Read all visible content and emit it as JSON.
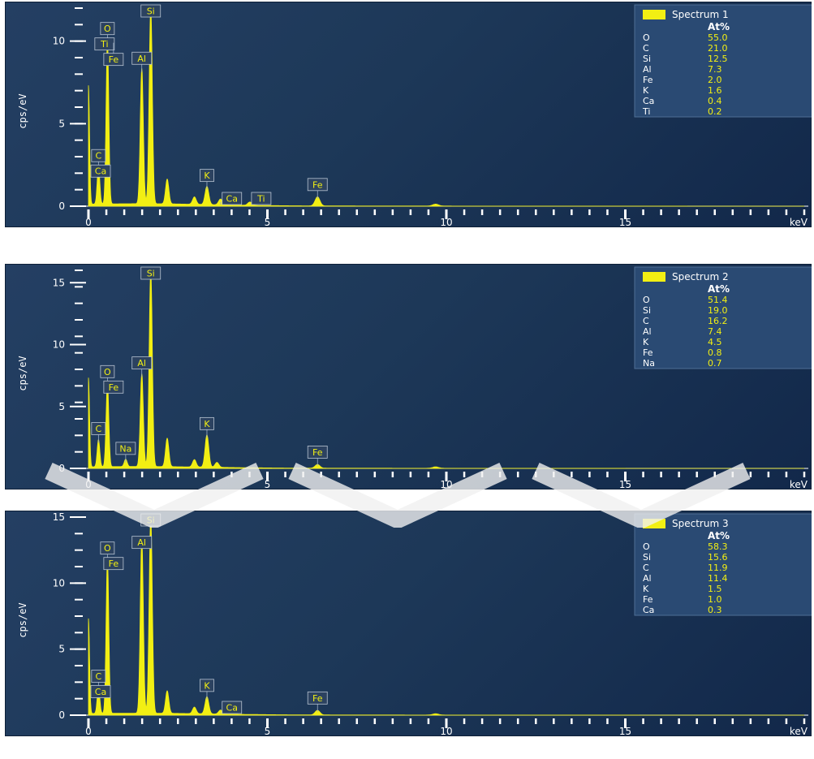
{
  "colors": {
    "spectrum": "#f2ef13",
    "panel_text": "#ffffff",
    "value_text": "#f2ef13"
  },
  "chart_data": [
    {
      "type": "line",
      "ylabel": "cps/eV",
      "xlabel": "keV",
      "xlim": [
        0,
        20
      ],
      "ylim": [
        0,
        12
      ],
      "x_ticks": [
        0,
        5,
        10,
        15
      ],
      "y_ticks": [
        0,
        5,
        10
      ],
      "legend": {
        "label": "Spectrum 1",
        "header": "At%",
        "position": "top-right",
        "rows": [
          [
            "O",
            "55.0"
          ],
          [
            "C",
            "21.0"
          ],
          [
            "Si",
            "12.5"
          ],
          [
            "Al",
            "7.3"
          ],
          [
            "Fe",
            "2.0"
          ],
          [
            "K",
            "1.6"
          ],
          [
            "Ca",
            "0.4"
          ],
          [
            "Ti",
            "0.2"
          ]
        ]
      },
      "peaks": [
        {
          "x": 0.0,
          "y": 7.2
        },
        {
          "x": 0.28,
          "y": 2.3
        },
        {
          "x": 0.53,
          "y": 10.0
        },
        {
          "x": 1.49,
          "y": 8.2
        },
        {
          "x": 1.74,
          "y": 12.0
        },
        {
          "x": 2.2,
          "y": 1.5
        },
        {
          "x": 2.96,
          "y": 0.45
        },
        {
          "x": 3.31,
          "y": 1.1
        },
        {
          "x": 3.69,
          "y": 0.35
        },
        {
          "x": 4.51,
          "y": 0.2
        },
        {
          "x": 6.4,
          "y": 0.55
        },
        {
          "x": 9.7,
          "y": 0.12
        }
      ],
      "peak_labels": [
        {
          "label": "Si",
          "x": 1.74
        },
        {
          "label": "O",
          "x": 0.53
        },
        {
          "label": "Al",
          "x": 1.49
        },
        {
          "label": "C",
          "x": 0.28
        },
        {
          "label": "Ti",
          "x": 0.45
        },
        {
          "label": "Fe",
          "x": 0.7
        },
        {
          "label": "Ca",
          "x": 0.34
        },
        {
          "label": "K",
          "x": 3.31
        },
        {
          "label": "Ca",
          "x": 3.69
        },
        {
          "label": "Ti",
          "x": 4.51
        },
        {
          "label": "Fe",
          "x": 6.4
        }
      ]
    },
    {
      "type": "line",
      "ylabel": "cps/eV",
      "xlabel": "keV",
      "xlim": [
        0,
        20
      ],
      "ylim": [
        0,
        16
      ],
      "x_ticks": [
        0,
        5,
        10,
        15
      ],
      "y_ticks": [
        0,
        5,
        10,
        15
      ],
      "legend": {
        "label": "Spectrum 2",
        "header": "At%",
        "position": "top-right",
        "rows": [
          [
            "O",
            "51.4"
          ],
          [
            "Si",
            "19.0"
          ],
          [
            "C",
            "16.2"
          ],
          [
            "Al",
            "7.4"
          ],
          [
            "K",
            "4.5"
          ],
          [
            "Fe",
            "0.8"
          ],
          [
            "Na",
            "0.7"
          ]
        ]
      },
      "peaks": [
        {
          "x": 0.0,
          "y": 7.2
        },
        {
          "x": 0.28,
          "y": 2.2
        },
        {
          "x": 0.53,
          "y": 6.8
        },
        {
          "x": 1.04,
          "y": 0.6
        },
        {
          "x": 1.49,
          "y": 7.5
        },
        {
          "x": 1.74,
          "y": 16.0
        },
        {
          "x": 2.2,
          "y": 2.3
        },
        {
          "x": 2.96,
          "y": 0.6
        },
        {
          "x": 3.31,
          "y": 2.6
        },
        {
          "x": 3.59,
          "y": 0.4
        },
        {
          "x": 6.4,
          "y": 0.3
        },
        {
          "x": 9.7,
          "y": 0.12
        }
      ],
      "peak_labels": [
        {
          "label": "Si",
          "x": 1.74
        },
        {
          "label": "O",
          "x": 0.53
        },
        {
          "label": "Al",
          "x": 1.49
        },
        {
          "label": "C",
          "x": 0.28
        },
        {
          "label": "Na",
          "x": 1.04
        },
        {
          "label": "Fe",
          "x": 0.7
        },
        {
          "label": "K",
          "x": 3.31
        },
        {
          "label": "Fe",
          "x": 6.4
        }
      ]
    },
    {
      "type": "line",
      "ylabel": "cps/eV",
      "xlabel": "keV",
      "xlim": [
        0,
        20
      ],
      "ylim": [
        0,
        15
      ],
      "x_ticks": [
        0,
        5,
        10,
        15
      ],
      "y_ticks": [
        0,
        5,
        10,
        15
      ],
      "legend": {
        "label": "Spectrum 3",
        "header": "At%",
        "position": "top-right",
        "rows": [
          [
            "O",
            "58.3"
          ],
          [
            "Si",
            "15.6"
          ],
          [
            "C",
            "11.9"
          ],
          [
            "Al",
            "11.4"
          ],
          [
            "K",
            "1.5"
          ],
          [
            "Fe",
            "1.0"
          ],
          [
            "Ca",
            "0.3"
          ]
        ]
      },
      "peaks": [
        {
          "x": 0.0,
          "y": 7.2
        },
        {
          "x": 0.28,
          "y": 2.0
        },
        {
          "x": 0.53,
          "y": 11.7
        },
        {
          "x": 1.49,
          "y": 13.3
        },
        {
          "x": 1.74,
          "y": 15.0
        },
        {
          "x": 2.2,
          "y": 1.7
        },
        {
          "x": 2.96,
          "y": 0.5
        },
        {
          "x": 3.31,
          "y": 1.3
        },
        {
          "x": 3.69,
          "y": 0.3
        },
        {
          "x": 6.4,
          "y": 0.35
        },
        {
          "x": 9.7,
          "y": 0.1
        }
      ],
      "peak_labels": [
        {
          "label": "Si",
          "x": 1.74
        },
        {
          "label": "Al",
          "x": 1.49
        },
        {
          "label": "O",
          "x": 0.53
        },
        {
          "label": "C",
          "x": 0.28
        },
        {
          "label": "Ca",
          "x": 0.34
        },
        {
          "label": "Fe",
          "x": 0.7
        },
        {
          "label": "K",
          "x": 3.31
        },
        {
          "label": "Ca",
          "x": 3.69
        },
        {
          "label": "Fe",
          "x": 6.4
        }
      ]
    }
  ]
}
